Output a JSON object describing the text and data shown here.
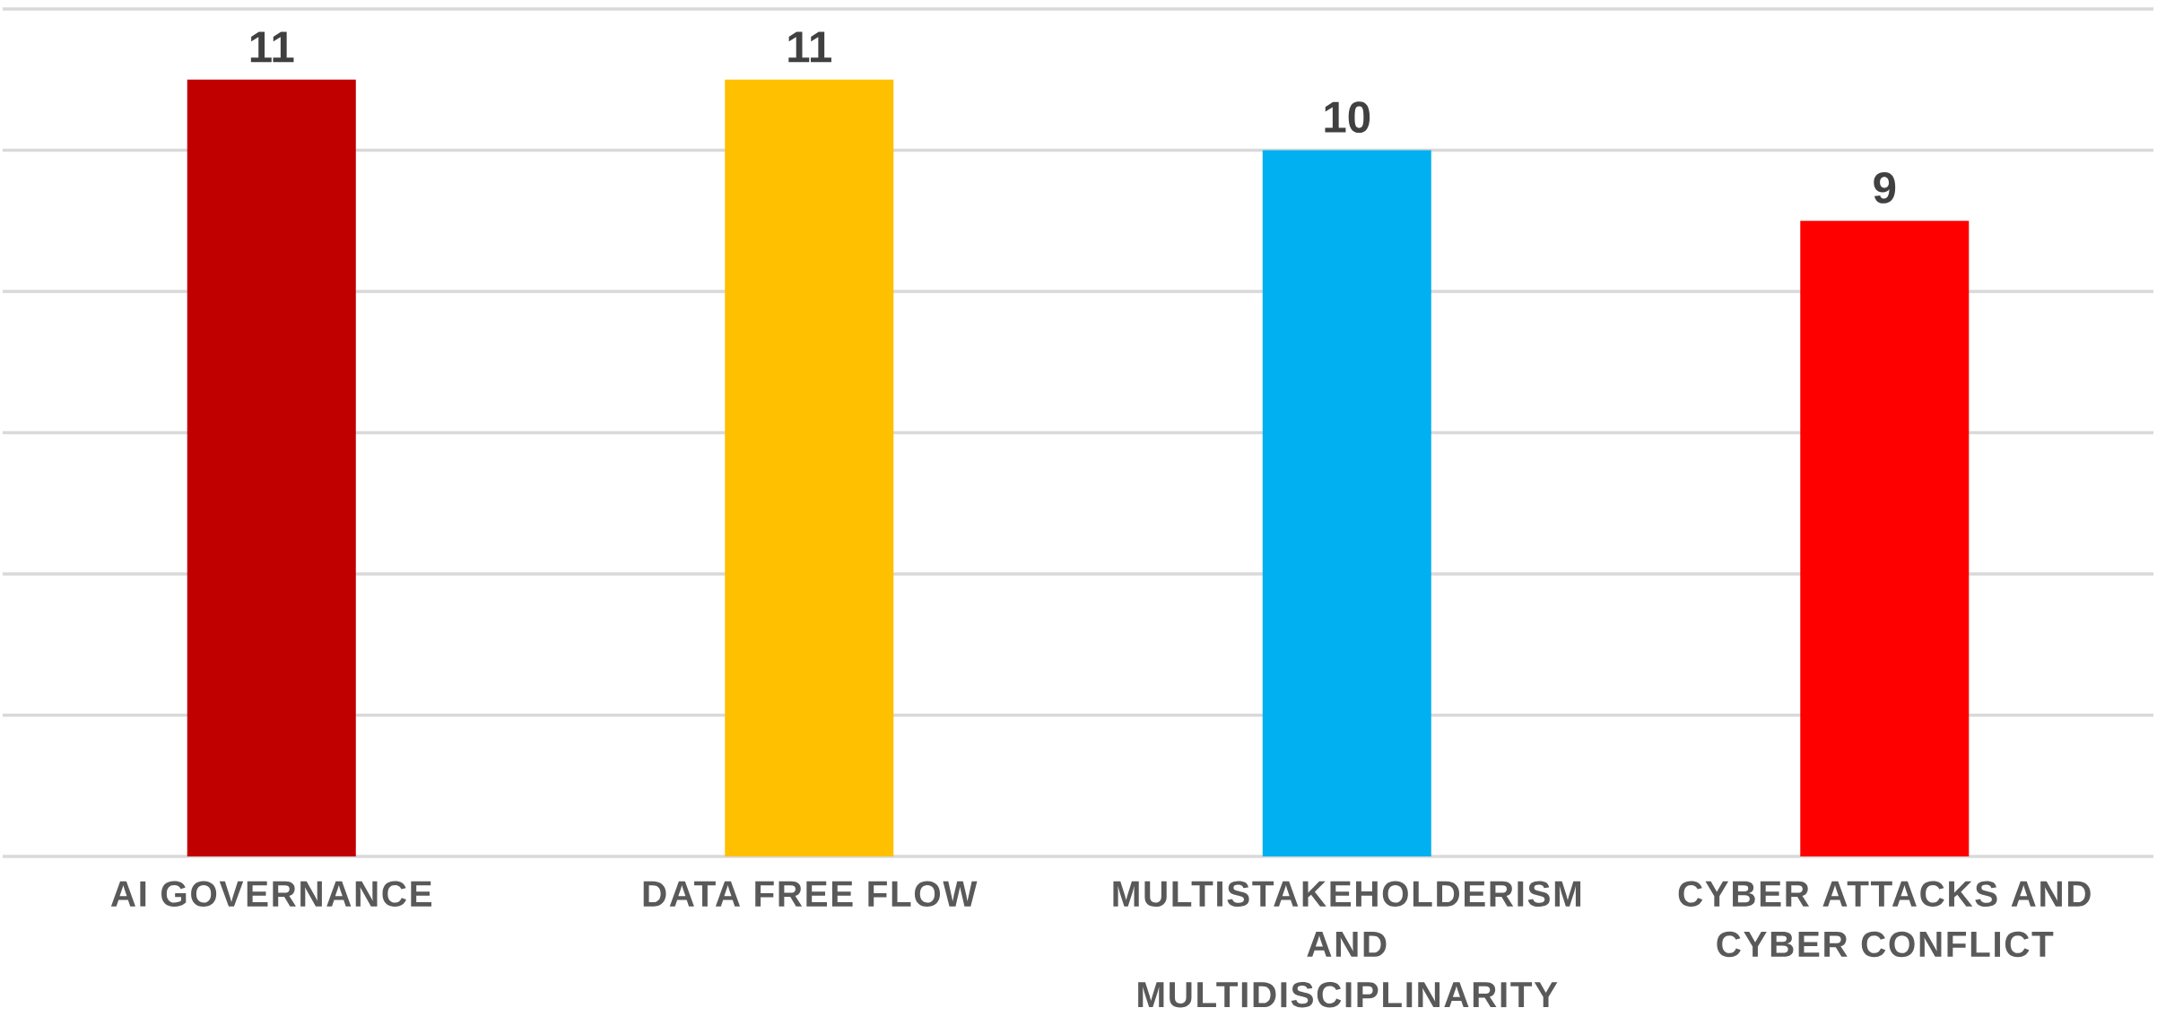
{
  "chart_data": {
    "type": "bar",
    "categories": [
      "AI GOVERNANCE",
      "DATA FREE FLOW",
      "MULTISTAKEHOLDERISM AND MULTIDISCIPLINARITY",
      "CYBER ATTACKS AND CYBER CONFLICT"
    ],
    "values": [
      11,
      11,
      10,
      9
    ],
    "colors": [
      "#c00000",
      "#ffc000",
      "#00b0f0",
      "#ff0000"
    ],
    "ylim": [
      0,
      12
    ],
    "yticks": [
      {
        "value": 0,
        "label": null
      },
      {
        "value": 2,
        "label": null
      },
      {
        "value": 4,
        "label": null
      },
      {
        "value": 6,
        "label": null
      },
      {
        "value": 8,
        "label": null
      },
      {
        "value": 10,
        "label": null
      },
      {
        "value": 12,
        "label": null
      }
    ],
    "tick_labels": "x",
    "grid": "y",
    "data_labels": true
  }
}
